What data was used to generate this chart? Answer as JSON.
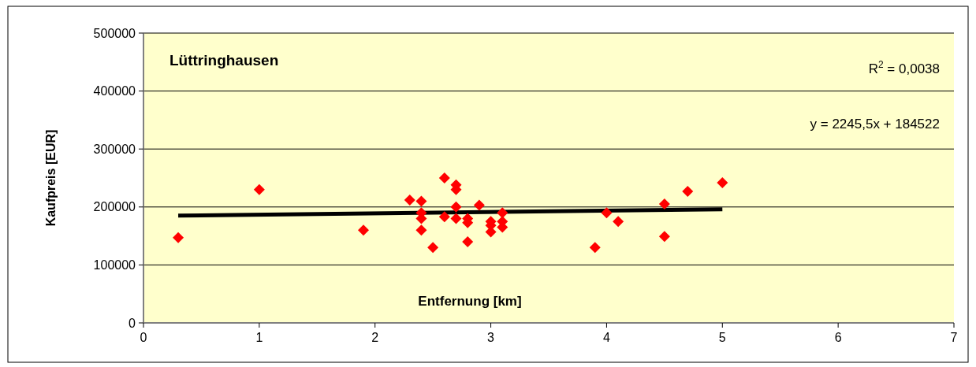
{
  "chart_data": {
    "type": "scatter",
    "xlabel": "Entfernung [km]",
    "ylabel": "Kaufpreis [EUR]",
    "annotations": [
      "Lüttringhausen",
      "R$^{2}$ = 0,0038",
      "y = 2245,5x + 184522"
    ],
    "xlim": [
      0,
      7
    ],
    "xticks": [
      0,
      1,
      2,
      3,
      4,
      5,
      6,
      7
    ],
    "ylim": [
      0,
      500000
    ],
    "yticks": [
      0,
      100000,
      200000,
      300000,
      400000,
      500000
    ],
    "grid": "y",
    "series": [
      {
        "marker": "diamond",
        "color": "#ff0000",
        "x": [
          0.3,
          1.0,
          1.9,
          2.3,
          2.4,
          2.4,
          2.4,
          2.4,
          2.5,
          2.6,
          2.6,
          2.7,
          2.7,
          2.7,
          2.7,
          2.8,
          2.8,
          2.8,
          2.9,
          3.0,
          3.0,
          3.0,
          3.1,
          3.1,
          3.1,
          3.9,
          4.0,
          4.1,
          4.5,
          4.5,
          4.7,
          5.0
        ],
        "values": [
          147000,
          230000,
          160000,
          212000,
          210000,
          190000,
          180000,
          160000,
          130000,
          250000,
          183000,
          238000,
          230000,
          200000,
          180000,
          180000,
          173000,
          140000,
          203000,
          175000,
          168000,
          157000,
          190000,
          175000,
          165000,
          130000,
          190000,
          175000,
          205000,
          149000,
          227000,
          242000
        ]
      },
      {
        "type": "line",
        "color": "#000000",
        "x": [
          0.3,
          5.0
        ],
        "values": [
          185000,
          196000
        ]
      }
    ]
  }
}
